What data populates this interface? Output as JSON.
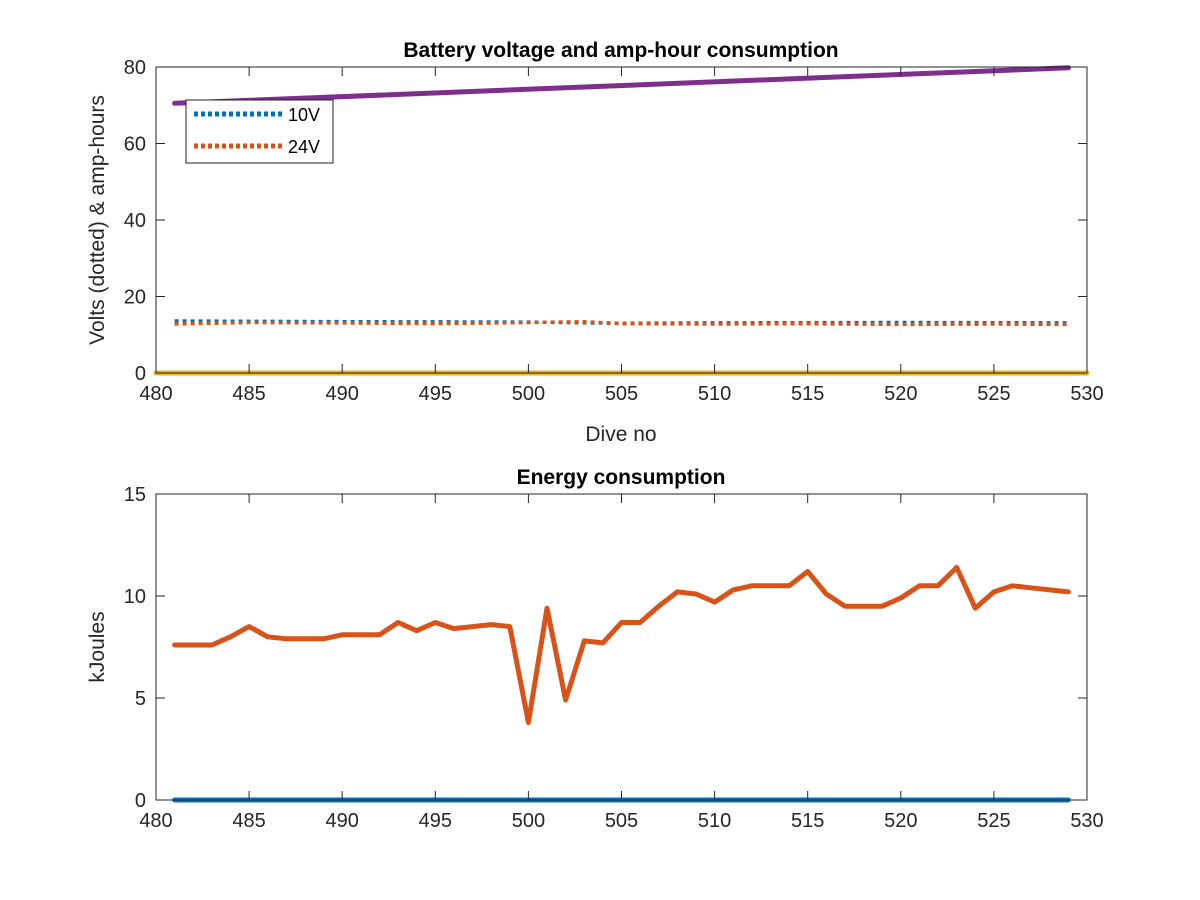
{
  "chart_data": [
    {
      "type": "line",
      "title": "Battery voltage and amp-hour consumption",
      "xlabel": "Dive no",
      "ylabel": "Volts (dotted) & amp-hours",
      "xlim": [
        480,
        530
      ],
      "ylim": [
        0,
        80
      ],
      "xticks": [
        480,
        485,
        490,
        495,
        500,
        505,
        510,
        515,
        520,
        525,
        530
      ],
      "yticks": [
        0,
        20,
        40,
        60,
        80
      ],
      "legend": {
        "placement": "top-left",
        "entries": [
          "10V",
          "24V"
        ]
      },
      "grid": false,
      "series": [
        {
          "name": "10V",
          "style": "dotted",
          "color": "#0072BD",
          "x": [
            481,
            490,
            500,
            505,
            510,
            520,
            529
          ],
          "y": [
            13.6,
            13.4,
            13.3,
            13.0,
            13.1,
            13.2,
            13.1
          ]
        },
        {
          "name": "24V",
          "style": "dotted",
          "color": "#D95319",
          "x": [
            481,
            485,
            490,
            495,
            500,
            503,
            505,
            510,
            515,
            520,
            525,
            529
          ],
          "y": [
            12.8,
            13.2,
            13.1,
            12.9,
            13.2,
            13.4,
            12.9,
            12.8,
            12.9,
            12.7,
            12.8,
            12.7
          ]
        },
        {
          "style": "solid",
          "color": "#7E2F8E",
          "x": [
            481,
            529
          ],
          "y": [
            70.5,
            79.8
          ]
        },
        {
          "style": "solid",
          "color": "#EDB120",
          "x": [
            480,
            530
          ],
          "y": [
            0,
            0
          ]
        }
      ]
    },
    {
      "type": "line",
      "title": "Energy consumption",
      "xlabel": "",
      "ylabel": "kJoules",
      "xlim": [
        480,
        530
      ],
      "ylim": [
        0,
        15
      ],
      "xticks": [
        480,
        485,
        490,
        495,
        500,
        505,
        510,
        515,
        520,
        525,
        530
      ],
      "yticks": [
        0,
        5,
        10,
        15
      ],
      "grid": false,
      "series": [
        {
          "style": "solid",
          "color": "#0072BD",
          "x": [
            481,
            529
          ],
          "y": [
            0,
            0
          ]
        },
        {
          "style": "solid",
          "color": "#D95319",
          "x": [
            481,
            482,
            483,
            484,
            485,
            486,
            487,
            488,
            489,
            490,
            491,
            492,
            493,
            494,
            495,
            496,
            497,
            498,
            499,
            500,
            501,
            502,
            503,
            504,
            505,
            506,
            507,
            508,
            509,
            510,
            511,
            512,
            513,
            514,
            515,
            516,
            517,
            518,
            519,
            520,
            521,
            522,
            523,
            524,
            525,
            526,
            527,
            528,
            529
          ],
          "y": [
            7.6,
            7.6,
            7.6,
            8.0,
            8.5,
            8.0,
            7.9,
            7.9,
            7.9,
            8.1,
            8.1,
            8.1,
            8.7,
            8.3,
            8.7,
            8.4,
            8.5,
            8.6,
            8.5,
            3.8,
            9.4,
            4.9,
            7.8,
            7.7,
            8.7,
            8.7,
            9.5,
            10.2,
            10.1,
            9.7,
            10.3,
            10.5,
            10.5,
            10.5,
            11.2,
            10.1,
            9.5,
            9.5,
            9.5,
            9.9,
            10.5,
            10.5,
            11.4,
            9.4,
            10.2,
            10.5,
            10.4,
            10.3,
            10.2
          ]
        }
      ]
    }
  ]
}
